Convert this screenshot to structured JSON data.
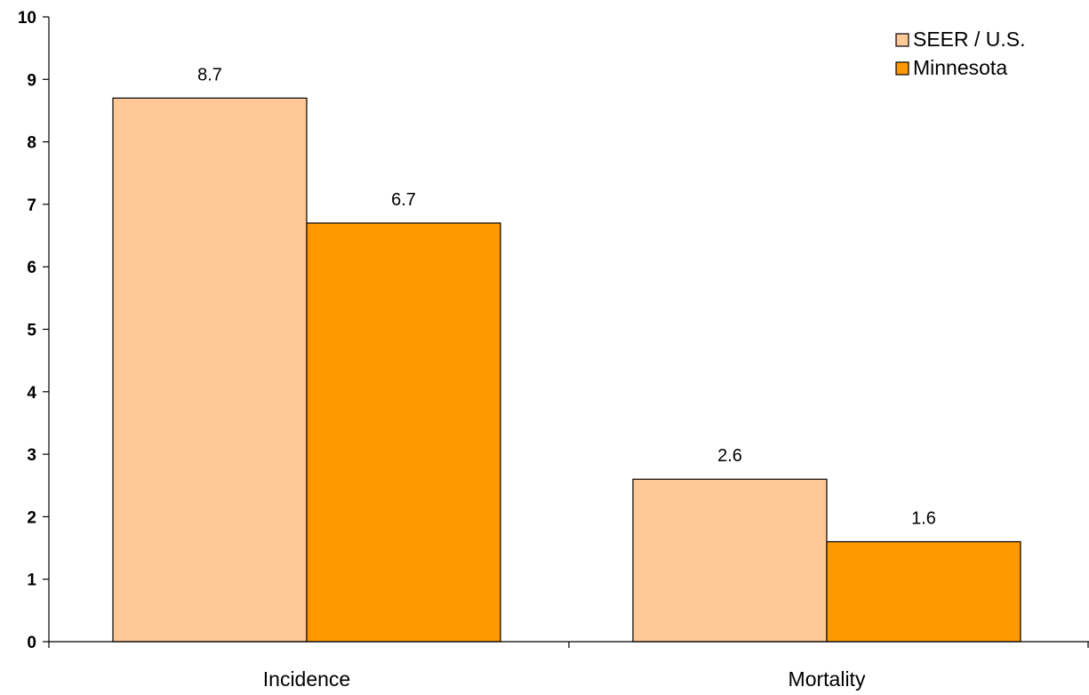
{
  "chart_data": {
    "type": "bar",
    "categories": [
      "Incidence",
      "Mortality"
    ],
    "series": [
      {
        "name": "SEER / U.S.",
        "values": [
          8.7,
          2.6
        ],
        "color": "#FFC896"
      },
      {
        "name": "Minnesota",
        "values": [
          6.7,
          1.6
        ],
        "color": "#FF9900"
      }
    ],
    "data_labels": [
      [
        "8.7",
        "2.6"
      ],
      [
        "6.7",
        "1.6"
      ]
    ],
    "ylim": [
      0,
      10
    ],
    "yticks": [
      "0",
      "1",
      "2",
      "3",
      "4",
      "5",
      "6",
      "7",
      "8",
      "9",
      "10"
    ],
    "grid": false,
    "legend_position": "top-right",
    "bar_edge_color": "#000000"
  }
}
